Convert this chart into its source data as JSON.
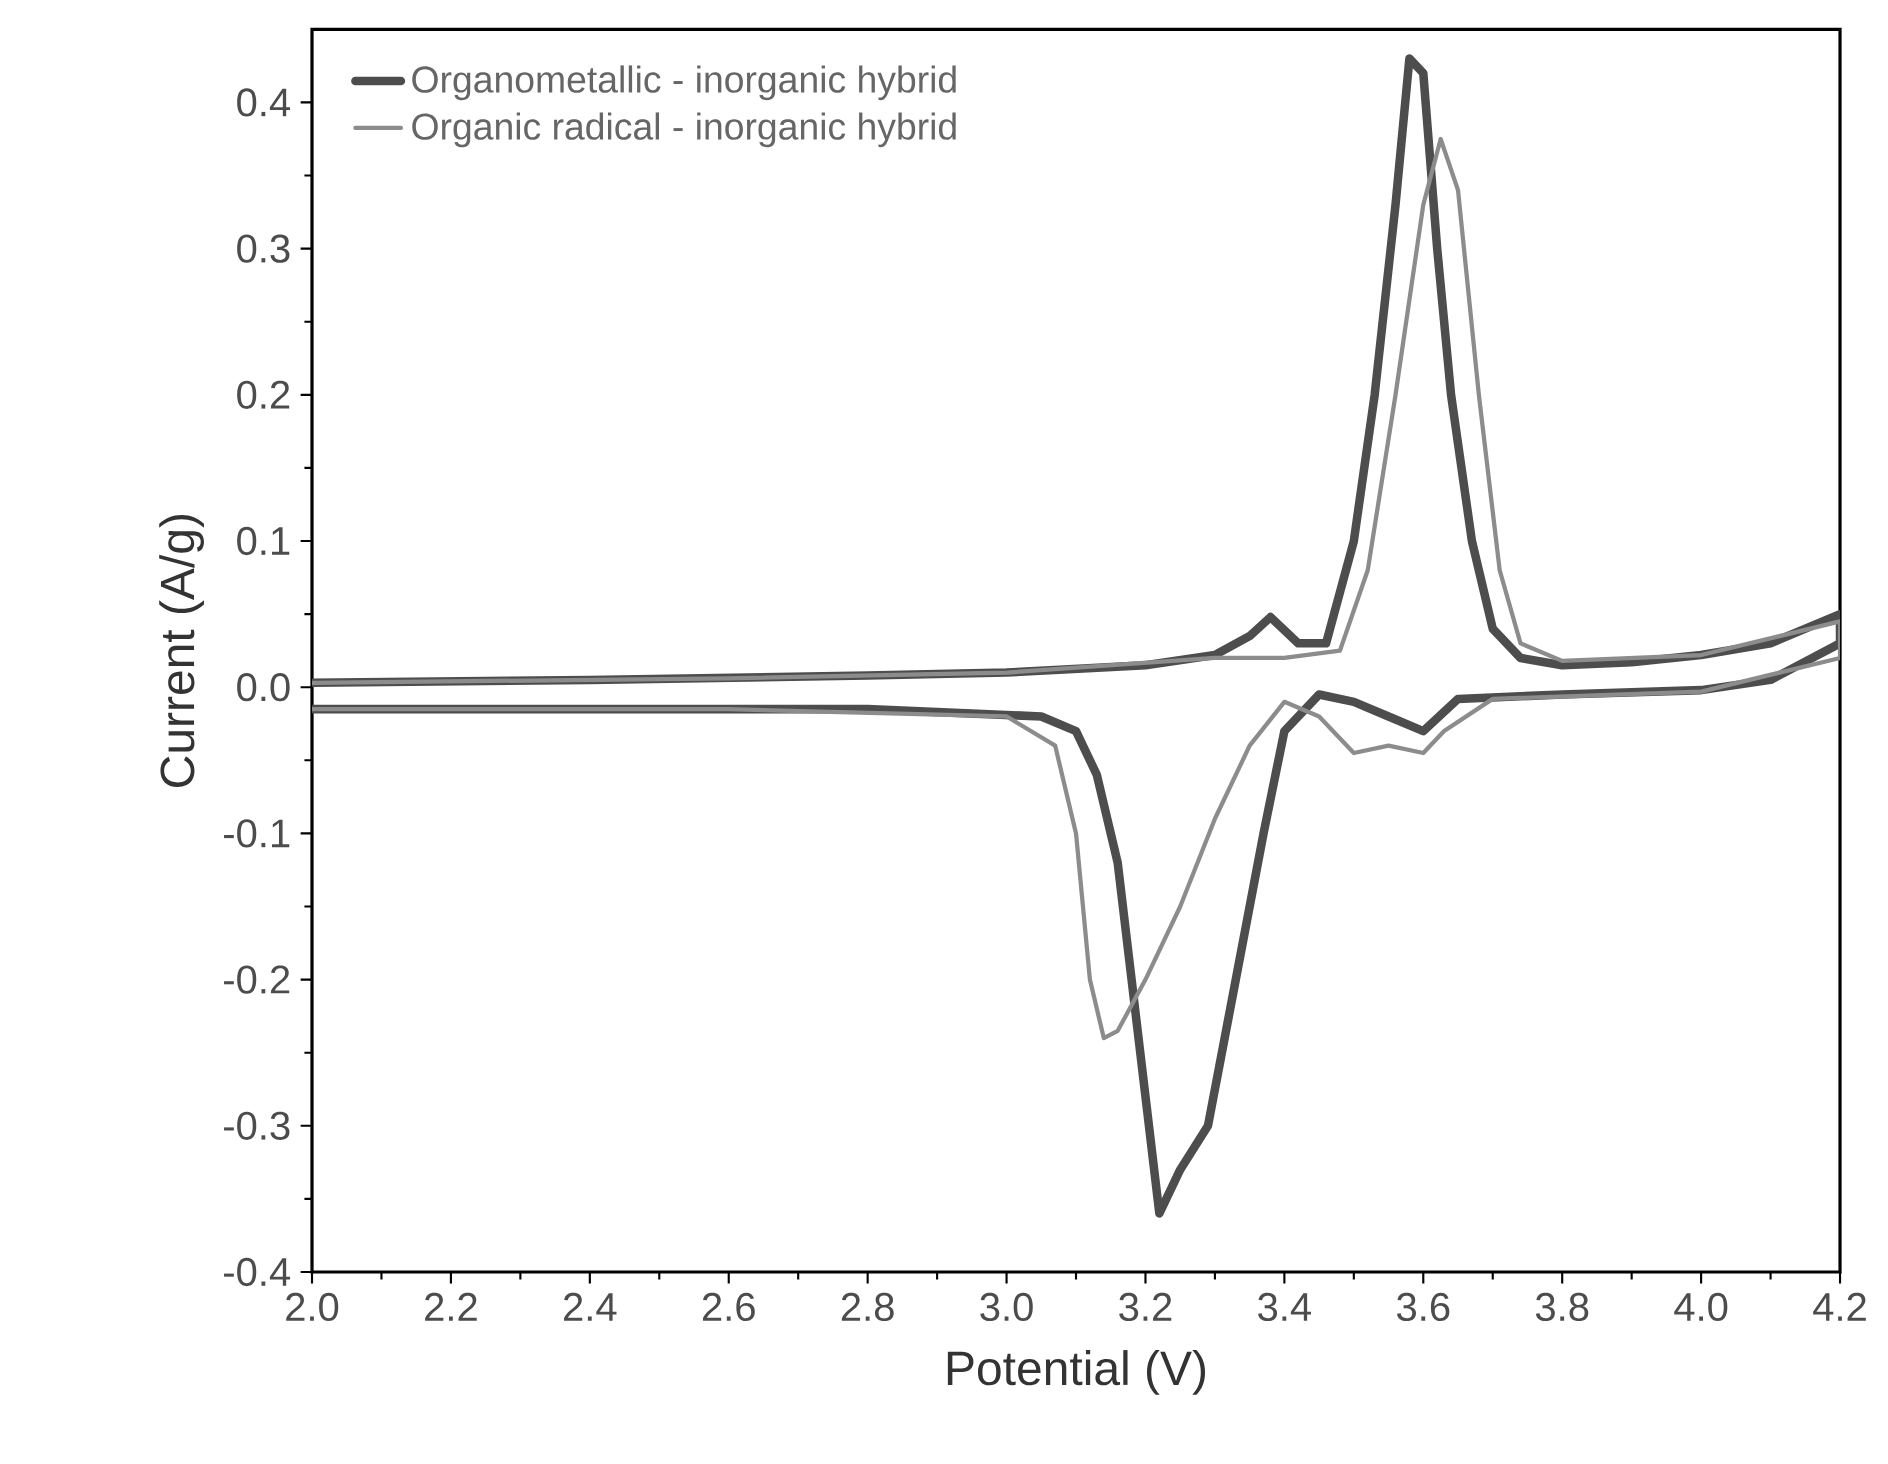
{
  "chart_data": {
    "type": "line",
    "xlabel": "Potential (V)",
    "ylabel": "Current (A/g)",
    "xlim": [
      2.0,
      4.2
    ],
    "ylim": [
      -0.4,
      0.45
    ],
    "xticks": [
      {
        "value": 2.0,
        "label": "2.0"
      },
      2.2,
      2.4,
      2.6,
      2.8,
      {
        "value": 3.0,
        "label": "3.0"
      },
      3.2,
      3.4,
      3.6,
      3.8,
      {
        "value": 4.0,
        "label": "4.0"
      },
      4.2
    ],
    "yticks": [
      -0.4,
      -0.3,
      -0.2,
      -0.1,
      {
        "value": 0,
        "label": "0.0"
      },
      0.1,
      0.2,
      0.3,
      0.4
    ],
    "legend": "top left",
    "marker": "none",
    "line_style": "solid",
    "grid": false,
    "series": [
      {
        "name": "Organometallic - inorganic hybrid",
        "color": "#4d4d4d",
        "x": [
          2.0,
          2.4,
          2.8,
          3.0,
          3.2,
          3.3,
          3.35,
          3.38,
          3.42,
          3.46,
          3.5,
          3.53,
          3.56,
          3.58,
          3.6,
          3.62,
          3.64,
          3.67,
          3.7,
          3.74,
          3.8,
          3.9,
          4.0,
          4.1,
          4.2,
          4.2,
          4.1,
          4.0,
          3.8,
          3.65,
          3.6,
          3.55,
          3.5,
          3.45,
          3.4,
          3.37,
          3.33,
          3.29,
          3.25,
          3.22,
          3.2,
          3.18,
          3.16,
          3.13,
          3.1,
          3.05,
          2.8,
          2.0
        ],
        "values": [
          0.003,
          0.005,
          0.008,
          0.01,
          0.015,
          0.022,
          0.035,
          0.048,
          0.03,
          0.03,
          0.1,
          0.2,
          0.33,
          0.43,
          0.42,
          0.3,
          0.2,
          0.1,
          0.04,
          0.02,
          0.015,
          0.017,
          0.022,
          0.03,
          0.05,
          0.03,
          0.005,
          -0.002,
          -0.005,
          -0.008,
          -0.03,
          -0.02,
          -0.01,
          -0.005,
          -0.03,
          -0.1,
          -0.2,
          -0.3,
          -0.33,
          -0.36,
          -0.28,
          -0.2,
          -0.12,
          -0.06,
          -0.03,
          -0.02,
          -0.015,
          -0.015
        ]
      },
      {
        "name": "Organic radical - inorganic hybrid",
        "color": "#8c8c8c",
        "x": [
          2.0,
          2.6,
          3.0,
          3.3,
          3.4,
          3.48,
          3.52,
          3.56,
          3.6,
          3.625,
          3.65,
          3.68,
          3.71,
          3.74,
          3.8,
          4.0,
          4.2,
          4.2,
          4.0,
          3.7,
          3.63,
          3.6,
          3.55,
          3.5,
          3.45,
          3.4,
          3.35,
          3.3,
          3.25,
          3.2,
          3.16,
          3.14,
          3.12,
          3.1,
          3.07,
          3.0,
          2.6,
          2.0
        ],
        "values": [
          0.003,
          0.006,
          0.01,
          0.02,
          0.02,
          0.025,
          0.08,
          0.2,
          0.33,
          0.375,
          0.34,
          0.2,
          0.08,
          0.03,
          0.018,
          0.022,
          0.045,
          0.02,
          -0.003,
          -0.008,
          -0.03,
          -0.045,
          -0.04,
          -0.045,
          -0.02,
          -0.01,
          -0.04,
          -0.09,
          -0.15,
          -0.2,
          -0.235,
          -0.24,
          -0.2,
          -0.1,
          -0.04,
          -0.02,
          -0.015,
          -0.015
        ]
      }
    ]
  }
}
